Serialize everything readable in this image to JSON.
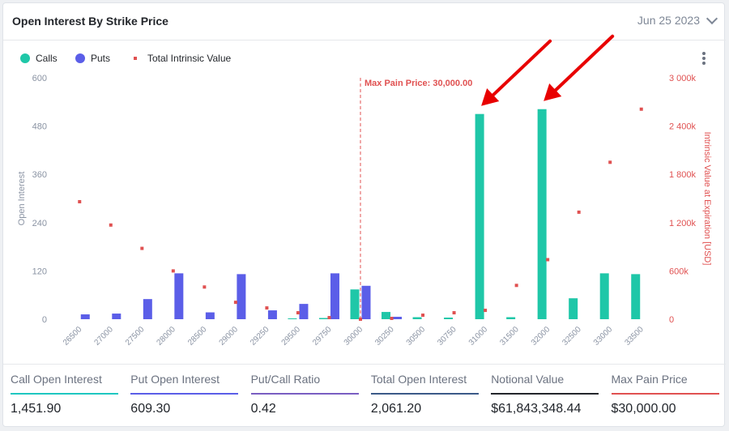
{
  "header": {
    "title": "Open Interest By Strike Price",
    "date": "Jun 25 2023"
  },
  "chart_data": {
    "type": "bar",
    "categories": [
      "26500",
      "27000",
      "27500",
      "28000",
      "28500",
      "29000",
      "29250",
      "29500",
      "29750",
      "30000",
      "30250",
      "30500",
      "30750",
      "31000",
      "31500",
      "32000",
      "32500",
      "33000",
      "33500"
    ],
    "series": [
      {
        "name": "Calls",
        "type": "bar",
        "axis": "left",
        "color": "#1fc7a8",
        "values": [
          0,
          0,
          0,
          0,
          0,
          0,
          0,
          2,
          3,
          74,
          18,
          5,
          4,
          510,
          5,
          522,
          52,
          114,
          112
        ]
      },
      {
        "name": "Puts",
        "type": "bar",
        "axis": "left",
        "color": "#5b5ee8",
        "values": [
          12,
          14,
          50,
          114,
          17,
          112,
          22,
          38,
          114,
          83,
          6,
          0,
          0,
          0,
          0,
          0,
          0,
          0,
          0
        ]
      },
      {
        "name": "Total Intrinsic Value",
        "type": "scatter",
        "axis": "right",
        "color": "#e05151",
        "values": [
          1460000,
          1170000,
          880000,
          600000,
          400000,
          210000,
          140000,
          80000,
          20000,
          0,
          10000,
          50000,
          80000,
          110000,
          420000,
          740000,
          1330000,
          1950000,
          2610000
        ]
      }
    ],
    "yleft": {
      "label": "Open Interest",
      "ticks": [
        "0",
        "120",
        "240",
        "360",
        "480",
        "600"
      ],
      "range": [
        0,
        600
      ]
    },
    "yright": {
      "label": "Intrinsic Value at Expiration [USD]",
      "ticks": [
        "0",
        "600k",
        "1 200k",
        "1 800k",
        "2 400k",
        "3 000k"
      ],
      "range": [
        0,
        3000000
      ]
    },
    "max_pain": {
      "strike": "30000",
      "label": "Max Pain Price: 30,000.00"
    },
    "legend_position": "top-left",
    "grid": false
  },
  "stats": [
    {
      "label": "Call Open Interest",
      "value": "1,451.90",
      "color": "#1fc7c1"
    },
    {
      "label": "Put Open Interest",
      "value": "609.30",
      "color": "#5b5ee8"
    },
    {
      "label": "Put/Call Ratio",
      "value": "0.42",
      "color": "#7a5ec2"
    },
    {
      "label": "Total Open Interest",
      "value": "2,061.20",
      "color": "#3b5a88"
    },
    {
      "label": "Notional Value",
      "value": "$61,843,348.44",
      "color": "#23262b"
    },
    {
      "label": "Max Pain Price",
      "value": "$30,000.00",
      "color": "#e05151"
    }
  ],
  "colors": {
    "annotation_arrow": "#e80000",
    "axis_text": "#8a93a3"
  }
}
